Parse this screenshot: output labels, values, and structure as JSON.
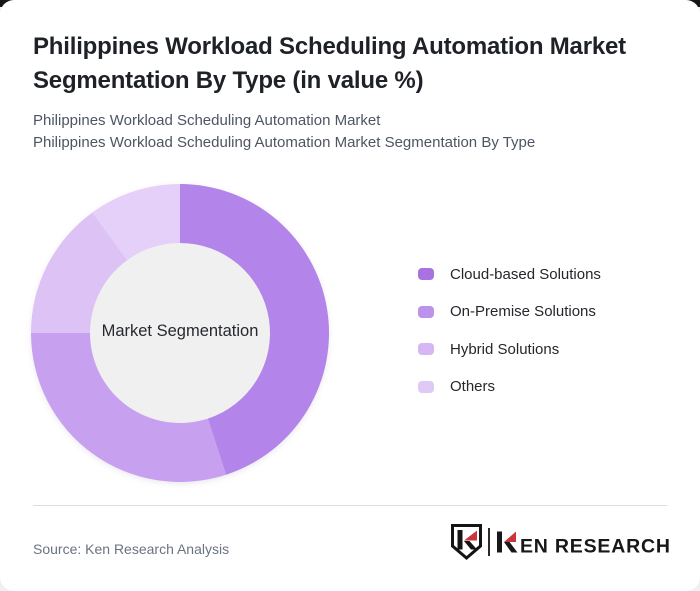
{
  "header": {
    "title_lines": [
      "Philippines Workload Scheduling Automation Market",
      "Segmentation By Type (in value %)"
    ],
    "subtitle_lines": [
      "Philippines Workload Scheduling Automation Market",
      "Philippines Workload Scheduling Automation Market Segmentation By Type"
    ]
  },
  "chart_data": {
    "type": "pie",
    "donut": true,
    "title": "Philippines Workload Scheduling Automation Market Segmentation By Type (in value %)",
    "center_label": "Market Segmentation",
    "categories": [
      "Cloud-based Solutions",
      "On-Premise Solutions",
      "Hybrid Solutions",
      "Others"
    ],
    "values": [
      45,
      30,
      15,
      10
    ],
    "unit": "percent (estimated from arc angles; no numeric labels shown)",
    "start_angle": "12 o'clock, clockwise",
    "inner_radius_ratio": 0.6,
    "colors": [
      "#b384ea",
      "#c7a0f0",
      "#dcc2f5",
      "#e4d0f8"
    ],
    "legend_colors": [
      "#aa72e1",
      "#bd92ec",
      "#d6b6f3",
      "#dfc9f6"
    ],
    "hole_color": "#f0f0f0",
    "legend_position": "right"
  },
  "footer": {
    "source_label": "Source: Ken Research Analysis",
    "logo": {
      "brand": "KEN RESEARCH",
      "wordmark_rest": "EN RESEARCH",
      "accent_color": "#c9363e",
      "text_color": "#17181a"
    }
  }
}
